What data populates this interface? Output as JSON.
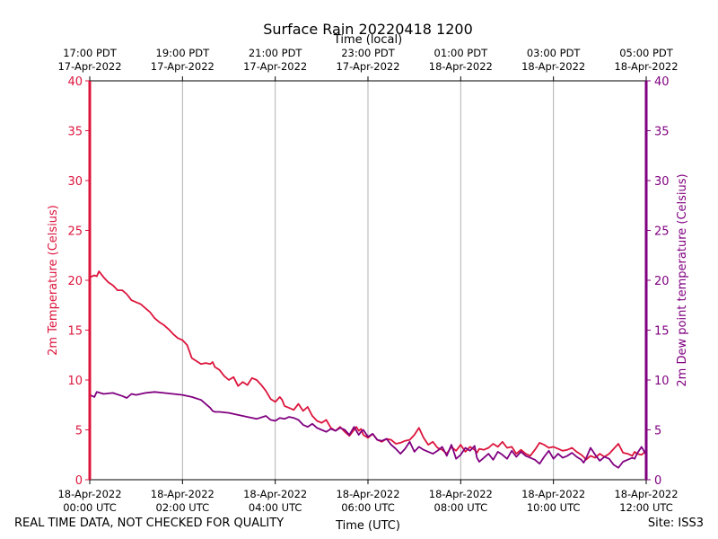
{
  "chart_data": {
    "type": "line",
    "title": "Surface Rain 20220418 1200",
    "xlabel": "Time (UTC)",
    "xlabel_top": "Time (local)",
    "ylabel_left": "2m Temperature (Celsius)",
    "ylabel_right": "2m Dew point temperature (Celsius)",
    "ylim": [
      0,
      40
    ],
    "xlim_hours": [
      0,
      12
    ],
    "y_ticks": [
      0,
      5,
      10,
      15,
      20,
      25,
      30,
      35,
      40
    ],
    "x_ticks_bottom": [
      {
        "hour": 0,
        "line1": "18-Apr-2022",
        "line2": "00:00 UTC"
      },
      {
        "hour": 2,
        "line1": "18-Apr-2022",
        "line2": "02:00 UTC"
      },
      {
        "hour": 4,
        "line1": "18-Apr-2022",
        "line2": "04:00 UTC"
      },
      {
        "hour": 6,
        "line1": "18-Apr-2022",
        "line2": "06:00 UTC"
      },
      {
        "hour": 8,
        "line1": "18-Apr-2022",
        "line2": "08:00 UTC"
      },
      {
        "hour": 10,
        "line1": "18-Apr-2022",
        "line2": "10:00 UTC"
      },
      {
        "hour": 12,
        "line1": "18-Apr-2022",
        "line2": "12:00 UTC"
      }
    ],
    "x_ticks_top": [
      {
        "hour": 0,
        "line1": "17:00 PDT",
        "line2": "17-Apr-2022"
      },
      {
        "hour": 2,
        "line1": "19:00 PDT",
        "line2": "17-Apr-2022"
      },
      {
        "hour": 4,
        "line1": "21:00 PDT",
        "line2": "17-Apr-2022"
      },
      {
        "hour": 6,
        "line1": "23:00 PDT",
        "line2": "17-Apr-2022"
      },
      {
        "hour": 8,
        "line1": "01:00 PDT",
        "line2": "18-Apr-2022"
      },
      {
        "hour": 10,
        "line1": "03:00 PDT",
        "line2": "18-Apr-2022"
      },
      {
        "hour": 12,
        "line1": "05:00 PDT",
        "line2": "18-Apr-2022"
      }
    ],
    "grid": "vertical",
    "series": [
      {
        "name": "2m Temperature",
        "axis": "left",
        "color": "#dc143c",
        "x": [
          0,
          0.1,
          0.15,
          0.2,
          0.3,
          0.4,
          0.5,
          0.6,
          0.7,
          0.8,
          0.9,
          1.0,
          1.1,
          1.2,
          1.3,
          1.4,
          1.5,
          1.6,
          1.7,
          1.8,
          1.9,
          2.0,
          2.1,
          2.2,
          2.3,
          2.4,
          2.5,
          2.6,
          2.65,
          2.7,
          2.8,
          2.9,
          3.0,
          3.1,
          3.2,
          3.3,
          3.4,
          3.5,
          3.6,
          3.7,
          3.8,
          3.9,
          4.0,
          4.1,
          4.15,
          4.2,
          4.3,
          4.4,
          4.5,
          4.6,
          4.7,
          4.8,
          4.9,
          5.0,
          5.1,
          5.2,
          5.3,
          5.4,
          5.5,
          5.6,
          5.7,
          5.75,
          5.8,
          5.85,
          5.9,
          6.0,
          6.1,
          6.2,
          6.3,
          6.4,
          6.5,
          6.6,
          6.7,
          6.8,
          6.9,
          7.0,
          7.1,
          7.2,
          7.3,
          7.4,
          7.5,
          7.6,
          7.7,
          7.8,
          7.9,
          8.0,
          8.1,
          8.2,
          8.3,
          8.35,
          8.4,
          8.5,
          8.6,
          8.7,
          8.8,
          8.9,
          9.0,
          9.1,
          9.2,
          9.3,
          9.4,
          9.5,
          9.6,
          9.7,
          9.8,
          9.9,
          10.0,
          10.1,
          10.2,
          10.3,
          10.4,
          10.5,
          10.6,
          10.65,
          10.7,
          10.8,
          10.9,
          11.0,
          11.1,
          11.2,
          11.3,
          11.4,
          11.5,
          11.6,
          11.7,
          11.75,
          11.8,
          11.9,
          12.0
        ],
        "values": [
          20.3,
          20.5,
          20.4,
          20.9,
          20.3,
          19.8,
          19.5,
          19.0,
          19.0,
          18.6,
          18.0,
          17.8,
          17.6,
          17.2,
          16.8,
          16.2,
          15.8,
          15.5,
          15.1,
          14.6,
          14.2,
          14.0,
          13.5,
          12.2,
          11.9,
          11.6,
          11.7,
          11.6,
          11.8,
          11.3,
          11.0,
          10.4,
          10.0,
          10.3,
          9.4,
          9.8,
          9.5,
          10.2,
          10.0,
          9.5,
          8.9,
          8.1,
          7.8,
          8.3,
          8.0,
          7.4,
          7.2,
          7.0,
          7.6,
          6.9,
          7.3,
          6.4,
          5.9,
          5.7,
          6.0,
          5.2,
          4.9,
          5.3,
          4.8,
          4.4,
          5.0,
          5.3,
          4.9,
          5.1,
          4.5,
          4.2,
          4.6,
          4.0,
          3.8,
          4.1,
          4.0,
          3.6,
          3.7,
          3.9,
          4.0,
          4.5,
          5.2,
          4.2,
          3.5,
          3.8,
          3.2,
          3.0,
          2.6,
          3.3,
          2.9,
          3.5,
          2.8,
          3.3,
          3.0,
          2.7,
          3.1,
          3.0,
          3.2,
          3.6,
          3.3,
          3.8,
          3.2,
          3.3,
          2.6,
          3.0,
          2.6,
          2.4,
          3.0,
          3.7,
          3.5,
          3.2,
          3.3,
          3.1,
          2.9,
          3.0,
          3.2,
          2.8,
          2.5,
          2.3,
          2.0,
          2.4,
          2.2,
          2.6,
          2.3,
          2.6,
          3.1,
          3.6,
          2.7,
          2.6,
          2.4,
          2.8,
          2.6,
          2.5,
          2.9
        ]
      },
      {
        "name": "2m Dew point temperature",
        "axis": "right",
        "color": "#800080",
        "x": [
          0,
          0.1,
          0.15,
          0.3,
          0.5,
          0.7,
          0.8,
          0.9,
          1.0,
          1.2,
          1.4,
          1.6,
          1.8,
          2.0,
          2.2,
          2.4,
          2.6,
          2.65,
          2.7,
          2.8,
          3.0,
          3.2,
          3.4,
          3.6,
          3.8,
          3.9,
          4.0,
          4.1,
          4.2,
          4.3,
          4.4,
          4.5,
          4.6,
          4.7,
          4.8,
          4.9,
          5.0,
          5.1,
          5.2,
          5.3,
          5.4,
          5.5,
          5.6,
          5.7,
          5.8,
          5.85,
          5.9,
          6.0,
          6.1,
          6.2,
          6.3,
          6.4,
          6.5,
          6.6,
          6.7,
          6.8,
          6.9,
          7.0,
          7.1,
          7.2,
          7.3,
          7.4,
          7.5,
          7.6,
          7.7,
          7.8,
          7.9,
          8.0,
          8.1,
          8.2,
          8.3,
          8.35,
          8.4,
          8.5,
          8.6,
          8.7,
          8.8,
          8.9,
          9.0,
          9.1,
          9.2,
          9.3,
          9.4,
          9.5,
          9.6,
          9.7,
          9.8,
          9.9,
          10.0,
          10.1,
          10.2,
          10.3,
          10.4,
          10.5,
          10.6,
          10.65,
          10.7,
          10.8,
          10.9,
          11.0,
          11.1,
          11.2,
          11.3,
          11.4,
          11.5,
          11.6,
          11.7,
          11.75,
          11.8,
          11.9,
          12.0
        ],
        "values": [
          8.5,
          8.3,
          8.8,
          8.6,
          8.7,
          8.4,
          8.2,
          8.6,
          8.5,
          8.7,
          8.8,
          8.7,
          8.6,
          8.5,
          8.3,
          8.0,
          7.2,
          6.9,
          6.8,
          6.8,
          6.7,
          6.5,
          6.3,
          6.1,
          6.4,
          6.0,
          5.9,
          6.2,
          6.1,
          6.3,
          6.2,
          6.0,
          5.5,
          5.3,
          5.6,
          5.2,
          5.0,
          4.8,
          5.1,
          4.9,
          5.2,
          5.0,
          4.5,
          5.3,
          4.5,
          4.8,
          5.0,
          4.3,
          4.6,
          4.0,
          3.9,
          4.1,
          3.5,
          3.1,
          2.6,
          3.1,
          3.8,
          2.8,
          3.3,
          3.0,
          2.8,
          2.6,
          2.9,
          3.3,
          2.4,
          3.5,
          2.1,
          2.5,
          3.2,
          2.9,
          3.4,
          2.2,
          1.8,
          2.2,
          2.6,
          2.0,
          2.8,
          2.5,
          2.1,
          2.9,
          2.3,
          2.8,
          2.4,
          2.2,
          2.0,
          1.6,
          2.3,
          2.9,
          2.1,
          2.6,
          2.2,
          2.4,
          2.7,
          2.3,
          2.0,
          1.7,
          2.1,
          3.2,
          2.5,
          1.9,
          2.3,
          2.1,
          1.5,
          1.2,
          1.8,
          2.0,
          2.2,
          2.1,
          2.6,
          3.3,
          2.5
        ]
      }
    ]
  },
  "footer": {
    "quality_note": "REAL TIME DATA, NOT CHECKED FOR QUALITY",
    "site": "Site: ISS3"
  },
  "colors": {
    "temperature": "#dc143c",
    "dewpoint": "#800080",
    "grid": "#b0b0b0",
    "axes": "#000000"
  }
}
